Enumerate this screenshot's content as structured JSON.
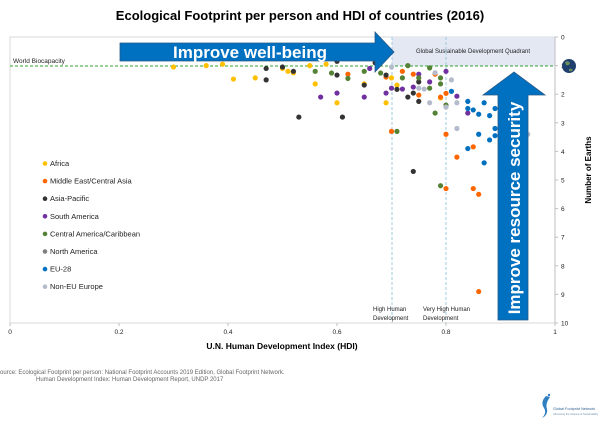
{
  "chart_data": {
    "type": "scatter",
    "title": "Ecological Footprint per person and HDI of countries (2016)",
    "xlabel": "U.N. Human Development Index  (HDI)",
    "ylabel": "Number of Earths",
    "xlim": [
      0,
      1
    ],
    "ylim": [
      10,
      0
    ],
    "y_axis_position": "right",
    "y_axis_inverted": true,
    "xticks": [
      "0",
      "0.2",
      "0.4",
      "0.6",
      "0.8",
      "1"
    ],
    "yticks": [
      "0",
      "1",
      "2",
      "3",
      "4",
      "5",
      "6",
      "7",
      "8",
      "9",
      "10"
    ],
    "grid": false,
    "legend_position": "left",
    "reference_line": {
      "label": "World Biocapacity",
      "y": 1,
      "color": "#2ca02c"
    },
    "thresholds": [
      {
        "label": "High Human Development",
        "x": 0.7
      },
      {
        "label": "Very High Human Development",
        "x": 0.8
      }
    ],
    "quadrant_label": "Global Sustainable Development Quadrant",
    "annotations": {
      "horizontal_arrow": "Improve well-being",
      "vertical_arrow": "Improve resource security"
    },
    "series": [
      {
        "name": "Africa",
        "color": "#ffc000",
        "points": [
          [
            0.3,
            1.05
          ],
          [
            0.36,
            1.0
          ],
          [
            0.39,
            0.95
          ],
          [
            0.41,
            1.47
          ],
          [
            0.45,
            1.43
          ],
          [
            0.5,
            1.1
          ],
          [
            0.51,
            1.2
          ],
          [
            0.52,
            1.25
          ],
          [
            0.56,
            1.64
          ],
          [
            0.6,
            2.3
          ],
          [
            0.65,
            1.64
          ],
          [
            0.69,
            2.3
          ],
          [
            0.7,
            1.43
          ],
          [
            0.71,
            1.68
          ],
          [
            0.79,
            2.13
          ],
          [
            0.55,
            1.0
          ],
          [
            0.58,
            0.95
          ]
        ]
      },
      {
        "name": "Middle East/Central Asia",
        "color": "#ff6600",
        "points": [
          [
            0.7,
            3.3
          ],
          [
            0.8,
            3.4
          ],
          [
            0.85,
            3.84
          ],
          [
            0.82,
            4.2
          ],
          [
            0.8,
            5.3
          ],
          [
            0.85,
            5.3
          ],
          [
            0.86,
            5.5
          ],
          [
            0.86,
            8.9
          ],
          [
            0.8,
            1.97
          ],
          [
            0.79,
            2.1
          ],
          [
            0.75,
            2.03
          ],
          [
            0.78,
            1.3
          ],
          [
            0.74,
            1.3
          ],
          [
            0.62,
            1.3
          ],
          [
            0.72,
            1.2
          ],
          [
            0.69,
            1.4
          ]
        ]
      },
      {
        "name": "Asia-Pacific",
        "color": "#333333",
        "points": [
          [
            0.47,
            1.1
          ],
          [
            0.47,
            1.5
          ],
          [
            0.5,
            1.05
          ],
          [
            0.52,
            1.2
          ],
          [
            0.53,
            2.8
          ],
          [
            0.6,
            0.85
          ],
          [
            0.6,
            1.33
          ],
          [
            0.61,
            2.8
          ],
          [
            0.74,
            4.7
          ],
          [
            0.9,
            3.7
          ],
          [
            0.73,
            2.1
          ],
          [
            0.75,
            2.25
          ],
          [
            0.74,
            1.96
          ],
          [
            0.71,
            1.83
          ],
          [
            0.69,
            1.33
          ],
          [
            0.75,
            1.57
          ],
          [
            0.67,
            0.9
          ],
          [
            0.65,
            1.68
          ]
        ]
      },
      {
        "name": "South America",
        "color": "#7030a0",
        "points": [
          [
            0.57,
            2.1
          ],
          [
            0.6,
            1.96
          ],
          [
            0.65,
            2.1
          ],
          [
            0.69,
            1.96
          ],
          [
            0.7,
            1.79
          ],
          [
            0.72,
            1.82
          ],
          [
            0.74,
            1.75
          ],
          [
            0.75,
            1.3
          ],
          [
            0.77,
            1.57
          ],
          [
            0.8,
            1.2
          ],
          [
            0.82,
            2.07
          ],
          [
            0.84,
            2.66
          ],
          [
            0.66,
            1.1
          ]
        ]
      },
      {
        "name": "Central America/Caribbean",
        "color": "#548235",
        "points": [
          [
            0.56,
            1.2
          ],
          [
            0.59,
            1.26
          ],
          [
            0.65,
            1.2
          ],
          [
            0.68,
            1.26
          ],
          [
            0.72,
            1.43
          ],
          [
            0.75,
            1.43
          ],
          [
            0.77,
            1.79
          ],
          [
            0.79,
            1.43
          ],
          [
            0.73,
            1.0
          ],
          [
            0.77,
            1.08
          ],
          [
            0.71,
            3.3
          ],
          [
            0.78,
            2.66
          ],
          [
            0.8,
            2.38
          ],
          [
            0.79,
            1.64
          ],
          [
            0.79,
            5.2
          ],
          [
            0.62,
            1.45
          ]
        ]
      },
      {
        "name": "North America",
        "color": "#7f7f7f",
        "points": []
      },
      {
        "name": "EU-28",
        "color": "#0070c0",
        "points": [
          [
            0.81,
            1.9
          ],
          [
            0.84,
            2.25
          ],
          [
            0.84,
            2.5
          ],
          [
            0.85,
            2.55
          ],
          [
            0.86,
            2.7
          ],
          [
            0.87,
            2.3
          ],
          [
            0.88,
            2.75
          ],
          [
            0.89,
            2.5
          ],
          [
            0.9,
            2.7
          ],
          [
            0.86,
            3.4
          ],
          [
            0.88,
            3.6
          ],
          [
            0.89,
            3.45
          ],
          [
            0.89,
            3.2
          ],
          [
            0.84,
            3.9
          ],
          [
            0.87,
            4.4
          ],
          [
            0.91,
            3.0
          ],
          [
            0.92,
            2.4
          ]
        ]
      },
      {
        "name": "Non-EU Europe",
        "color": "#b4bccc",
        "points": [
          [
            0.82,
            3.2
          ],
          [
            0.95,
            3.4
          ],
          [
            0.77,
            2.3
          ],
          [
            0.82,
            2.3
          ],
          [
            0.8,
            2.45
          ],
          [
            0.78,
            1.25
          ],
          [
            0.76,
            1.82
          ],
          [
            0.75,
            1.79
          ],
          [
            0.7,
            1.05
          ],
          [
            0.81,
            1.5
          ]
        ]
      }
    ]
  },
  "source": {
    "line1": "ource: Ecological Footprint per person: National Footprint Accounts 2019 Edition, Global Footprint Network.",
    "line2": "Human Development Index: Human Development Report, UNDP 2017"
  },
  "logo": {
    "name": "Global Footprint Network",
    "tagline": "Advancing the Science of Sustainability"
  }
}
